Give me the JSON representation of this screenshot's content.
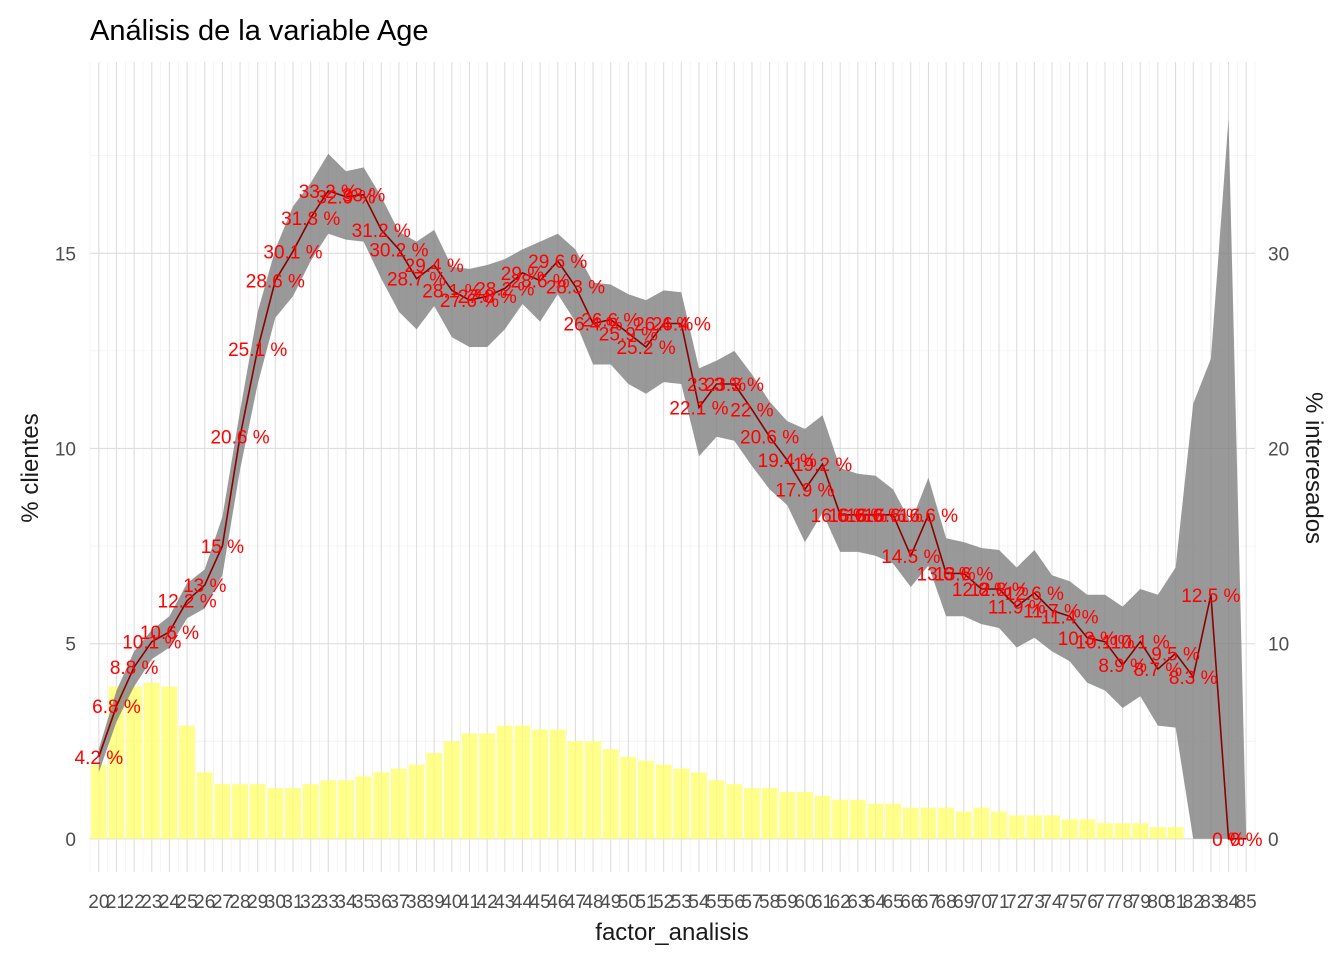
{
  "chart_data": {
    "type": "bar",
    "title": "Análisis de la variable Age",
    "xlabel": "factor_analisis",
    "ylabel": "% clientes",
    "ylabel_right": "% interesados",
    "ylim": [
      -0.85,
      19.9
    ],
    "ylim_right": [
      -1.7,
      39.8
    ],
    "yticks": [
      0,
      5,
      10,
      15
    ],
    "yticks_right": [
      0,
      10,
      20,
      30
    ],
    "grid": true,
    "colors": {
      "bars": "#ffff66",
      "line": "#8b0000",
      "ribbon": "#7f7f7f",
      "labels": "#ff0000"
    },
    "categories": [
      "20",
      "21",
      "22",
      "23",
      "24",
      "25",
      "26",
      "27",
      "28",
      "29",
      "30",
      "31",
      "32",
      "33",
      "34",
      "35",
      "36",
      "37",
      "38",
      "39",
      "40",
      "41",
      "42",
      "43",
      "44",
      "45",
      "46",
      "47",
      "48",
      "49",
      "50",
      "51",
      "52",
      "53",
      "54",
      "55",
      "56",
      "57",
      "58",
      "59",
      "60",
      "61",
      "62",
      "63",
      "64",
      "65",
      "66",
      "67",
      "68",
      "69",
      "70",
      "71",
      "72",
      "73",
      "74",
      "75",
      "76",
      "77",
      "78",
      "79",
      "80",
      "81",
      "82",
      "83",
      "84",
      "85"
    ],
    "series": [
      {
        "type": "bar",
        "axis": "left",
        "values": [
          1.9,
          3.9,
          3.9,
          4.0,
          3.9,
          2.9,
          1.7,
          1.4,
          1.4,
          1.4,
          1.3,
          1.3,
          1.4,
          1.5,
          1.5,
          1.6,
          1.7,
          1.8,
          1.9,
          2.2,
          2.5,
          2.7,
          2.7,
          2.9,
          2.9,
          2.8,
          2.8,
          2.5,
          2.5,
          2.3,
          2.1,
          2.0,
          1.9,
          1.8,
          1.7,
          1.5,
          1.4,
          1.3,
          1.3,
          1.2,
          1.2,
          1.1,
          1.0,
          1.0,
          0.9,
          0.9,
          0.8,
          0.8,
          0.8,
          0.7,
          0.8,
          0.7,
          0.6,
          0.6,
          0.6,
          0.5,
          0.5,
          0.4,
          0.4,
          0.4,
          0.3,
          0.3,
          0,
          0,
          0,
          0
        ]
      },
      {
        "type": "line",
        "axis": "right",
        "values": [
          4.2,
          6.8,
          8.8,
          10.1,
          10.6,
          12.2,
          13,
          15,
          20.6,
          25.1,
          28.6,
          30.1,
          31.8,
          33.2,
          32.9,
          33,
          31.2,
          30.2,
          28.7,
          29.4,
          28.1,
          27.6,
          27.8,
          28.2,
          29,
          28.6,
          29.6,
          28.3,
          26.4,
          26.6,
          25.9,
          25.2,
          26.4,
          26.4,
          22.1,
          23.3,
          23.3,
          22,
          20.6,
          19.4,
          17.9,
          19.2,
          16.6,
          16.6,
          16.6,
          16.6,
          14.5,
          16.6,
          13.6,
          13.6,
          12.8,
          12.8,
          11.9,
          12.6,
          11.7,
          11.4,
          10.3,
          10.1,
          8.9,
          10.1,
          8.7,
          9.5,
          8.3,
          12.5,
          0,
          0
        ],
        "ribbon_lower": [
          3.4,
          6.0,
          7.8,
          9.2,
          9.8,
          11.3,
          11.8,
          13.5,
          18.9,
          23.3,
          26.7,
          27.8,
          29.6,
          31.0,
          30.7,
          30.6,
          28.7,
          27.0,
          26.1,
          27.3,
          25.7,
          25.2,
          25.2,
          26.1,
          27.4,
          26.5,
          27.9,
          26.5,
          24.3,
          24.3,
          23.3,
          22.8,
          23.4,
          23.3,
          19.6,
          20.6,
          20.4,
          19.1,
          17.9,
          17.1,
          15.2,
          16.7,
          14.7,
          14.7,
          14.5,
          14.1,
          12.9,
          14.0,
          11.4,
          11.4,
          11.0,
          10.8,
          9.8,
          10.3,
          9.6,
          9.1,
          8.0,
          7.6,
          6.7,
          7.3,
          5.8,
          5.7,
          0.0,
          0.0,
          0.0,
          0.0
        ],
        "ribbon_upper": [
          4.6,
          7.6,
          9.6,
          10.7,
          11.4,
          13.1,
          13.8,
          16.5,
          21.9,
          27.0,
          30.2,
          32.4,
          33.6,
          35.1,
          34.2,
          34.4,
          32.9,
          31.1,
          30.6,
          31.2,
          29.3,
          29.2,
          29.4,
          29.7,
          30.2,
          30.6,
          31.0,
          30.2,
          28.5,
          28.4,
          27.9,
          27.6,
          28.1,
          28.0,
          24.1,
          24.5,
          25.0,
          23.8,
          22.4,
          21.4,
          21.0,
          21.7,
          19.0,
          18.7,
          18.6,
          17.9,
          16.2,
          18.5,
          15.4,
          15.2,
          14.9,
          14.8,
          13.9,
          14.8,
          13.5,
          13.2,
          12.5,
          12.5,
          11.9,
          12.8,
          12.5,
          13.9,
          22.3,
          24.6,
          36.9,
          0.0
        ]
      }
    ],
    "data_labels": [
      "4.2 %",
      "6.8 %",
      "8.8 %",
      "10.1 %",
      "10.6 %",
      "12.2 %",
      "13 %",
      "15 %",
      "20.6 %",
      "25.1 %",
      "28.6 %",
      "30.1 %",
      "31.8 %",
      "33.2 %",
      "32.9 %",
      "33 %",
      "31.2 %",
      "30.2 %",
      "28.7 %",
      "29.4 %",
      "28.1 %",
      "27.6 %",
      "27.8 %",
      "28.2 %",
      "29 %",
      "28.6 %",
      "29.6 %",
      "28.3 %",
      "26.4 %",
      "26.6 %",
      "25.9 %",
      "25.2 %",
      "26.4 %",
      "26.4 %",
      "22.1 %",
      "23.3 %",
      "23.3 %",
      "22 %",
      "20.6 %",
      "19.4 %",
      "17.9 %",
      "19.2 %",
      "16.6 %",
      "16.6 %",
      "16.6 %",
      "16.6 %",
      "14.5 %",
      "16.6 %",
      "13.6 %",
      "13.6 %",
      "12.8 %",
      "12.8 %",
      "11.9 %",
      "12.6 %",
      "11.7 %",
      "11.4 %",
      "10.3 %",
      "10.1 %",
      "8.9 %",
      "10.1 %",
      "8.7 %",
      "9.5 %",
      "8.3 %",
      "12.5 %",
      "0 %",
      "0 %"
    ]
  }
}
